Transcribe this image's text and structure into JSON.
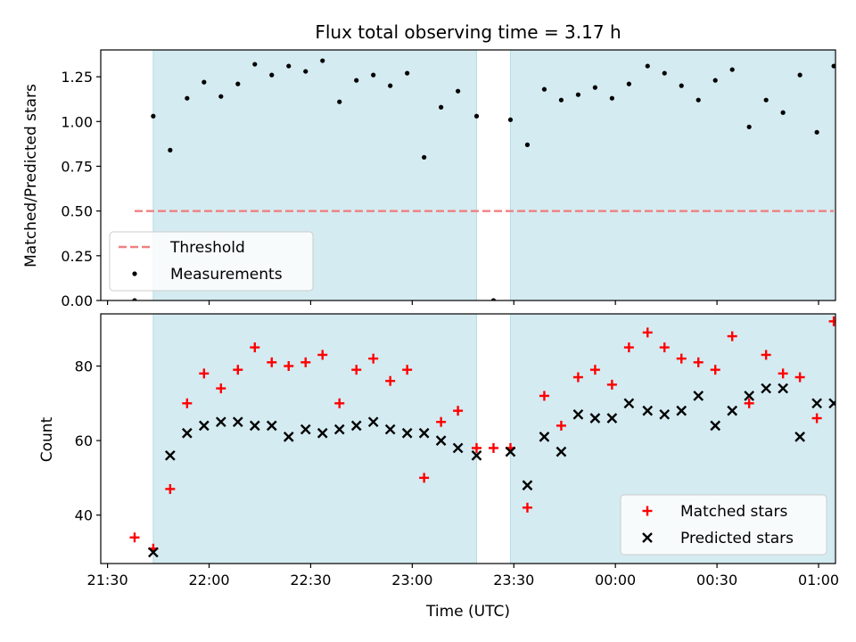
{
  "chart_data": {
    "type": "scatter",
    "title": "Flux total observing time = 3.17 h",
    "xlabel": "Time (UTC)",
    "x_ticks": [
      {
        "label": "21:30",
        "minutes": -30
      },
      {
        "label": "22:00",
        "minutes": 0
      },
      {
        "label": "22:30",
        "minutes": 30
      },
      {
        "label": "23:00",
        "minutes": 60
      },
      {
        "label": "23:30",
        "minutes": 90
      },
      {
        "label": "00:00",
        "minutes": 120
      },
      {
        "label": "00:30",
        "minutes": 150
      },
      {
        "label": "01:00",
        "minutes": 180
      }
    ],
    "x_unit_note": "minutes after 22:00 UTC",
    "xlim": [
      -32,
      185
    ],
    "shaded_intervals": [
      [
        -16.5,
        79
      ],
      [
        89,
        184.5
      ]
    ],
    "top_panel": {
      "ylabel": "Matched/Predicted stars",
      "ylim": [
        0,
        1.4
      ],
      "yticks": [
        "0.00",
        "0.25",
        "0.50",
        "0.75",
        "1.00",
        "1.25"
      ],
      "threshold": {
        "name": "Threshold",
        "value": 0.5,
        "x_range": [
          -22,
          184.5
        ]
      },
      "series": [
        {
          "name": "Measurements",
          "x": [
            -22,
            -16.5,
            -11.5,
            -6.5,
            -1.5,
            3.5,
            8.5,
            13.5,
            18.5,
            23.5,
            28.5,
            33.5,
            38.5,
            43.5,
            48.5,
            53.5,
            58.5,
            63.5,
            68.5,
            73.5,
            79,
            84,
            89,
            94,
            99,
            104,
            109,
            114,
            119,
            124,
            129.5,
            134.5,
            139.5,
            144.5,
            149.5,
            154.5,
            159.5,
            164.5,
            169.5,
            174.5,
            179.5,
            184.5
          ],
          "y": [
            0.0,
            1.03,
            0.84,
            1.13,
            1.22,
            1.14,
            1.21,
            1.32,
            1.26,
            1.31,
            1.28,
            1.34,
            1.11,
            1.23,
            1.26,
            1.2,
            1.27,
            0.8,
            1.08,
            1.17,
            1.03,
            0.0,
            1.01,
            0.87,
            1.18,
            1.12,
            1.15,
            1.19,
            1.13,
            1.21,
            1.31,
            1.27,
            1.2,
            1.12,
            1.23,
            1.29,
            0.97,
            1.12,
            1.05,
            1.26,
            0.94,
            1.31
          ]
        }
      ],
      "legend": [
        "Threshold",
        "Measurements"
      ],
      "legend_position": "lower-left"
    },
    "bottom_panel": {
      "ylabel": "Count",
      "ylim": [
        27,
        94
      ],
      "yticks": [
        "40",
        "60",
        "80"
      ],
      "series": [
        {
          "name": "Matched stars",
          "x": [
            -22,
            -16.5,
            -11.5,
            -6.5,
            -1.5,
            3.5,
            8.5,
            13.5,
            18.5,
            23.5,
            28.5,
            33.5,
            38.5,
            43.5,
            48.5,
            53.5,
            58.5,
            63.5,
            68.5,
            73.5,
            79,
            84,
            89,
            94,
            99,
            104,
            109,
            114,
            119,
            124,
            129.5,
            134.5,
            139.5,
            144.5,
            149.5,
            154.5,
            159.5,
            164.5,
            169.5,
            174.5,
            179.5,
            184.5
          ],
          "y": [
            34,
            31,
            47,
            70,
            78,
            74,
            79,
            85,
            81,
            80,
            81,
            83,
            70,
            79,
            82,
            76,
            79,
            50,
            65,
            68,
            58,
            58,
            58,
            42,
            72,
            64,
            77,
            79,
            75,
            85,
            89,
            85,
            82,
            81,
            79,
            88,
            70,
            83,
            78,
            77,
            66,
            92
          ]
        },
        {
          "name": "Predicted stars",
          "x": [
            -16.5,
            -11.5,
            -6.5,
            -1.5,
            3.5,
            8.5,
            13.5,
            18.5,
            23.5,
            28.5,
            33.5,
            38.5,
            43.5,
            48.5,
            53.5,
            58.5,
            63.5,
            68.5,
            73.5,
            79,
            89,
            94,
            99,
            104,
            109,
            114,
            119,
            124,
            129.5,
            134.5,
            139.5,
            144.5,
            149.5,
            154.5,
            159.5,
            164.5,
            169.5,
            174.5,
            179.5,
            184.5
          ],
          "y": [
            30,
            56,
            62,
            64,
            65,
            65,
            64,
            64,
            61,
            63,
            62,
            63,
            64,
            65,
            63,
            62,
            62,
            60,
            58,
            56,
            57,
            48,
            61,
            57,
            67,
            66,
            66,
            70,
            68,
            67,
            68,
            72,
            64,
            68,
            72,
            74,
            74,
            61,
            70,
            70
          ]
        }
      ],
      "legend": [
        "Matched stars",
        "Predicted stars"
      ],
      "legend_position": "lower-right"
    },
    "colors": {
      "shade": "#d4ebf1",
      "shade_edge": "#b5dde6",
      "threshold": "#f08080",
      "measurement": "#000000",
      "matched": "#ff0000",
      "predicted": "#000000"
    }
  }
}
